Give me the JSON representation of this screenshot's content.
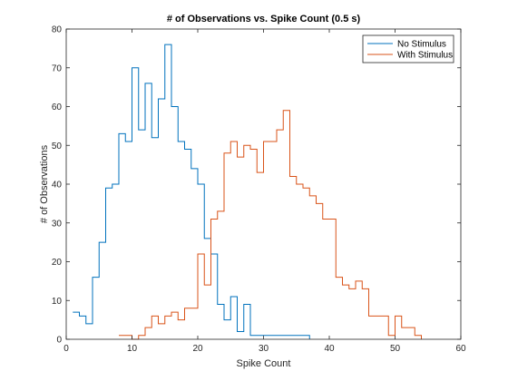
{
  "colors": {
    "no_stimulus": "#0072BD",
    "with_stimulus": "#D95319",
    "axis": "#262626"
  },
  "chart_data": {
    "type": "line",
    "subtype": "stairs-histogram",
    "title": "# of Observations vs. Spike Count (0.5 s)",
    "xlabel": "Spike Count",
    "ylabel": "# of Observations",
    "xlim": [
      0,
      60
    ],
    "ylim": [
      0,
      80
    ],
    "xticks": [
      0,
      10,
      20,
      30,
      40,
      50,
      60
    ],
    "yticks": [
      0,
      10,
      20,
      30,
      40,
      50,
      60,
      70,
      80
    ],
    "grid": false,
    "legend_position": "top-right",
    "series": [
      {
        "name": "No Stimulus",
        "color": "#0072BD",
        "x": [
          1,
          2,
          3,
          4,
          5,
          6,
          7,
          8,
          9,
          10,
          11,
          12,
          13,
          14,
          15,
          16,
          17,
          18,
          19,
          20,
          21,
          22,
          23,
          24,
          25,
          26,
          27,
          28,
          29,
          30,
          31,
          32,
          33,
          34,
          35,
          36,
          37
        ],
        "values": [
          7,
          6,
          4,
          16,
          25,
          39,
          40,
          53,
          51,
          70,
          54,
          66,
          52,
          62,
          76,
          60,
          51,
          49,
          44,
          40,
          26,
          22,
          9,
          5,
          11,
          2,
          9,
          1,
          1,
          1,
          1,
          1,
          1,
          1,
          1,
          1,
          0
        ]
      },
      {
        "name": "With Stimulus",
        "color": "#D95319",
        "x": [
          8,
          9,
          10,
          11,
          12,
          13,
          14,
          15,
          16,
          17,
          18,
          19,
          20,
          21,
          22,
          23,
          24,
          25,
          26,
          27,
          28,
          29,
          30,
          31,
          32,
          33,
          34,
          35,
          36,
          37,
          38,
          39,
          40,
          41,
          42,
          43,
          44,
          45,
          46,
          47,
          48,
          49,
          50,
          51,
          52,
          53,
          54
        ],
        "values": [
          1,
          1,
          0,
          1,
          3,
          6,
          4,
          6,
          7,
          5,
          8,
          8,
          22,
          14,
          31,
          33,
          48,
          51,
          47,
          50,
          49,
          43,
          51,
          51,
          54,
          59,
          42,
          40,
          39,
          37,
          35,
          31,
          31,
          16,
          14,
          13,
          15,
          13,
          6,
          6,
          6,
          1,
          6,
          3,
          3,
          1,
          0
        ]
      }
    ]
  }
}
